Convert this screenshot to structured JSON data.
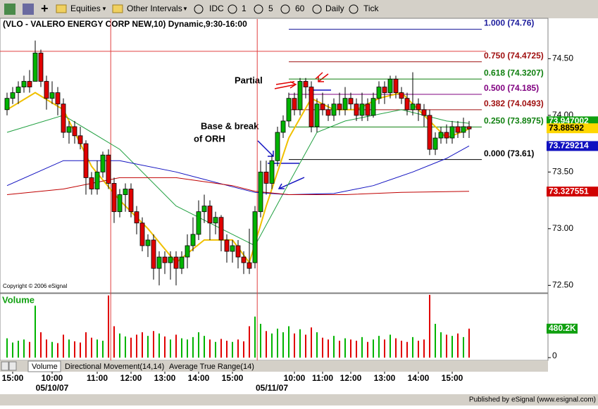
{
  "toolbar": {
    "items": [
      "Equities",
      "Other Intervals",
      "IDC",
      "1",
      "5",
      "60",
      "Daily",
      "Tick"
    ]
  },
  "tabs": [
    "Volume",
    "Directional Movement(14,14)",
    "Average True Range(14)"
  ],
  "footer": "Published by eSignal (www.esignal.com)",
  "chart_data": {
    "type": "candlestick",
    "title": "(VLO - VALERO ENERGY CORP NEW,10) Dynamic,9:30-16:00",
    "copyright": "Copyright © 2006 eSignal",
    "volume_title": "Volume",
    "annotations": [
      "Partial",
      "Base & break",
      "of ORH"
    ],
    "xlim": [
      -1.25,
      96
    ],
    "ylim": [
      72.44,
      74.85
    ],
    "yticks": [
      {
        "value": 74.5,
        "label": "74.50"
      },
      {
        "value": 74,
        "label": "74.00"
      },
      {
        "value": 73.5,
        "label": "73.50"
      },
      {
        "value": 73,
        "label": "73.00"
      },
      {
        "value": 72.5,
        "label": "72.50"
      }
    ],
    "xticks": [
      {
        "value": 1,
        "label": "15:00"
      },
      {
        "value": 8,
        "label": "10:00"
      },
      {
        "value": 16,
        "label": "11:00"
      },
      {
        "value": 22,
        "label": "12:00"
      },
      {
        "value": 28,
        "label": "13:00"
      },
      {
        "value": 34,
        "label": "14:00"
      },
      {
        "value": 40,
        "label": "15:00"
      },
      {
        "value": 51,
        "label": "10:00"
      },
      {
        "value": 56,
        "label": "11:00"
      },
      {
        "value": 61,
        "label": "12:00"
      },
      {
        "value": 67,
        "label": "13:00"
      },
      {
        "value": 73,
        "label": "14:00"
      },
      {
        "value": 79,
        "label": "15:00"
      }
    ],
    "date_labels": [
      {
        "value": 8,
        "label": "05/10/07"
      },
      {
        "value": 47,
        "label": "05/11/07"
      }
    ],
    "session_breaks": [
      18.4,
      44.4
    ],
    "up_color": "#00b400",
    "down_color": "#e00000",
    "open": [
      74.05,
      74.15,
      74.2,
      74.25,
      74.3,
      74.3,
      74.55,
      74.3,
      74.15,
      74.2,
      74.1,
      73.85,
      73.9,
      73.82,
      73.75,
      73.45,
      73.35,
      73.5,
      73.65,
      73.4,
      73.15,
      73.3,
      73.35,
      73.15,
      73.05,
      72.85,
      72.9,
      72.65,
      72.75,
      72.7,
      72.75,
      72.65,
      72.75,
      72.85,
      72.95,
      73.15,
      73.2,
      73.05,
      73.1,
      72.9,
      72.8,
      72.85,
      72.75,
      72.7,
      72.7,
      73.15,
      73.5,
      73.4,
      73.6,
      73.85,
      73.95,
      74.15,
      74.05,
      74.3,
      74.25,
      73.9,
      74.1,
      74.05,
      74.0,
      74.1,
      74.05,
      74.15,
      74.1,
      74.0,
      74.1,
      74.0,
      74.15,
      74.25,
      74.2,
      74.32,
      74.2,
      74.15,
      74.05,
      74.1,
      74.05,
      74.0,
      73.7,
      73.8,
      73.85,
      73.8,
      73.9,
      73.85,
      73.9
    ],
    "high": [
      74.2,
      74.25,
      74.3,
      74.35,
      74.4,
      74.66,
      74.58,
      74.35,
      74.3,
      74.25,
      74.15,
      73.95,
      73.95,
      73.9,
      73.78,
      73.5,
      73.6,
      73.68,
      73.7,
      73.45,
      73.35,
      73.4,
      73.4,
      73.2,
      73.1,
      72.95,
      72.95,
      72.8,
      72.8,
      72.8,
      72.8,
      72.8,
      72.95,
      73.1,
      73.25,
      73.3,
      73.25,
      73.15,
      73.12,
      72.95,
      72.9,
      72.9,
      72.8,
      73.0,
      73.2,
      73.6,
      73.6,
      73.65,
      73.9,
      74.0,
      74.2,
      74.2,
      74.33,
      74.33,
      74.3,
      74.15,
      74.2,
      74.1,
      74.15,
      74.2,
      74.25,
      74.2,
      74.15,
      74.2,
      74.15,
      74.2,
      74.3,
      74.3,
      74.35,
      74.35,
      74.25,
      74.2,
      74.38,
      74.15,
      74.1,
      74.05,
      73.85,
      73.9,
      73.92,
      73.95,
      73.95,
      73.98,
      73.95
    ],
    "low": [
      74.0,
      74.1,
      74.1,
      74.2,
      74.2,
      74.3,
      74.25,
      74.05,
      74.1,
      74.0,
      73.8,
      73.75,
      73.75,
      73.7,
      73.3,
      73.3,
      73.3,
      73.45,
      73.35,
      73.05,
      73.1,
      73.15,
      73.1,
      72.95,
      72.8,
      72.75,
      72.55,
      72.5,
      72.6,
      72.55,
      72.5,
      72.6,
      72.65,
      72.8,
      72.9,
      73.05,
      72.9,
      72.95,
      72.8,
      72.7,
      72.7,
      72.65,
      72.6,
      72.6,
      72.65,
      73.1,
      73.3,
      73.35,
      73.55,
      73.8,
      73.9,
      74.0,
      74.0,
      74.15,
      73.85,
      73.85,
      74.0,
      73.95,
      73.95,
      74.0,
      74.0,
      74.05,
      73.95,
      73.95,
      73.95,
      73.98,
      74.1,
      74.1,
      74.15,
      74.15,
      74.1,
      74.0,
      74.0,
      73.95,
      73.9,
      73.65,
      73.65,
      73.75,
      73.75,
      73.75,
      73.8,
      73.8,
      73.8
    ],
    "close": [
      74.15,
      74.2,
      74.25,
      74.3,
      74.25,
      74.55,
      74.3,
      74.15,
      74.2,
      74.1,
      73.85,
      73.9,
      73.82,
      73.75,
      73.45,
      73.35,
      73.5,
      73.65,
      73.4,
      73.15,
      73.3,
      73.35,
      73.15,
      73.05,
      72.85,
      72.9,
      72.65,
      72.75,
      72.7,
      72.75,
      72.65,
      72.75,
      72.85,
      72.95,
      73.15,
      73.2,
      73.05,
      73.1,
      72.9,
      72.8,
      72.85,
      72.75,
      72.7,
      72.65,
      73.15,
      73.5,
      73.4,
      73.6,
      73.85,
      73.95,
      74.15,
      74.05,
      74.3,
      74.25,
      73.9,
      74.1,
      74.05,
      74.0,
      74.1,
      74.05,
      74.15,
      74.1,
      74.0,
      74.1,
      74.0,
      74.15,
      74.25,
      74.2,
      74.32,
      74.2,
      74.15,
      74.05,
      74.1,
      74.05,
      74.0,
      73.7,
      73.8,
      73.85,
      73.8,
      73.9,
      73.85,
      73.9,
      73.88
    ],
    "volume": [
      320000,
      250000,
      280000,
      300000,
      260000,
      860000,
      420000,
      300000,
      260000,
      240000,
      380000,
      300000,
      270000,
      250000,
      420000,
      330000,
      300000,
      280000,
      1030000,
      520000,
      400000,
      350000,
      330000,
      380000,
      420000,
      360000,
      440000,
      400000,
      350000,
      300000,
      380000,
      320000,
      300000,
      340000,
      420000,
      360000,
      300000,
      260000,
      310000,
      280000,
      260000,
      300000,
      270000,
      520000,
      680000,
      560000,
      440000,
      400000,
      480000,
      420000,
      520000,
      400000,
      470000,
      380000,
      500000,
      420000,
      330000,
      300000,
      360000,
      280000,
      320000,
      300000,
      280000,
      340000,
      260000,
      300000,
      360000,
      300000,
      380000,
      320000,
      280000,
      260000,
      340000,
      280000,
      300000,
      1040000,
      560000,
      420000,
      380000,
      360000,
      400000,
      340000,
      480200
    ],
    "volume_ylim": [
      0,
      1050000
    ],
    "volume_yticks": [
      0
    ],
    "volume_tag": {
      "value": 480200,
      "label": "480.2K",
      "color": "#10a010"
    },
    "ma": [
      {
        "color": "#f0c000",
        "x": [
          0,
          5,
          10,
          15,
          20,
          25,
          30,
          35,
          40,
          43,
          46,
          50,
          54,
          58,
          62,
          66,
          70,
          74,
          78,
          82
        ],
        "values": [
          74.05,
          74.2,
          74.05,
          73.55,
          73.25,
          73.0,
          72.7,
          72.9,
          72.9,
          72.7,
          73.2,
          73.8,
          74.15,
          74.05,
          74.05,
          74.15,
          74.2,
          74.0,
          73.8,
          73.88
        ]
      },
      {
        "color": "#20a040",
        "x": [
          0,
          10,
          20,
          30,
          40,
          44,
          50,
          55,
          60,
          70,
          78,
          82
        ],
        "values": [
          73.85,
          74.0,
          73.7,
          73.2,
          72.95,
          72.85,
          73.4,
          73.85,
          73.95,
          74.05,
          73.95,
          73.93
        ]
      },
      {
        "color": "#1010c0",
        "x": [
          0,
          10,
          20,
          30,
          40,
          44,
          50,
          58,
          65,
          72,
          78,
          82
        ],
        "values": [
          73.38,
          73.6,
          73.6,
          73.5,
          73.37,
          73.32,
          73.3,
          73.31,
          73.38,
          73.5,
          73.62,
          73.73
        ]
      },
      {
        "color": "#c00000",
        "x": [
          0,
          10,
          20,
          30,
          40,
          44,
          50,
          60,
          70,
          82
        ],
        "values": [
          73.3,
          73.35,
          73.45,
          73.45,
          73.38,
          73.33,
          73.3,
          73.3,
          73.32,
          73.33
        ]
      }
    ],
    "ref_line": {
      "value": 74.565,
      "color": "#e04040"
    },
    "fib_start": 50,
    "fib_levels": [
      {
        "value": 74.76,
        "label": "1.000 (74.76)",
        "color": "#1c1c9c"
      },
      {
        "value": 74.4725,
        "label": "0.750 (74.4725)",
        "color": "#a01010"
      },
      {
        "value": 74.3207,
        "label": "0.618 (74.3207)",
        "color": "#108010"
      },
      {
        "value": 74.185,
        "label": "0.500 (74.185)",
        "color": "#800080"
      },
      {
        "value": 74.0493,
        "label": "0.382 (74.0493)",
        "color": "#a01010"
      },
      {
        "value": 73.8975,
        "label": "0.250 (73.8975)",
        "color": "#108010"
      },
      {
        "value": 73.61,
        "label": "0.000 (73.61)",
        "color": "#000000"
      }
    ],
    "price_tags": [
      {
        "value": 73.947002,
        "label": "73.947002",
        "color": "#10a010",
        "text_color": "#ffffff"
      },
      {
        "value": 73.88592,
        "label": "73.88592",
        "color": "#ffd700",
        "text_color": "#000000"
      },
      {
        "value": 73.729214,
        "label": "73.729214",
        "color": "#1010c0",
        "text_color": "#ffffff"
      },
      {
        "value": 73.327551,
        "label": "73.327551",
        "color": "#d00000",
        "text_color": "#ffffff"
      }
    ]
  }
}
